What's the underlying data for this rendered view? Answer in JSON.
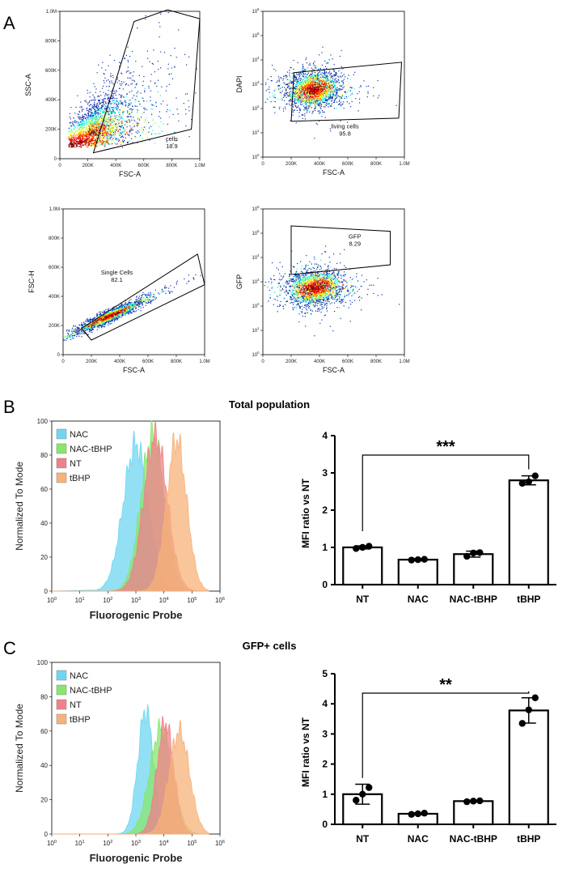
{
  "panel_labels": {
    "a": "A",
    "b": "B",
    "c": "C"
  },
  "chart_data": [
    {
      "type": "scatter",
      "panel": "A",
      "subplot": "top-left",
      "xlabel": "FSC-A",
      "ylabel": "SSC-A",
      "x_ticks": [
        "0",
        "200K",
        "400K",
        "600K",
        "800K",
        "1.0M"
      ],
      "y_ticks": [
        "0",
        "200K",
        "400K",
        "600K",
        "800K",
        "1.0M"
      ],
      "xlim": [
        0,
        1000000
      ],
      "ylim": [
        0,
        1000000
      ],
      "gate": {
        "name": "cells",
        "value": "18.9"
      },
      "gate_polygon": [
        [
          240000,
          40000
        ],
        [
          530000,
          930000
        ],
        [
          770000,
          1010000
        ],
        [
          1000000,
          950000
        ],
        [
          940000,
          200000
        ]
      ],
      "density_centers": [
        [
          60000,
          80000
        ],
        [
          130000,
          100000
        ],
        [
          200000,
          160000
        ]
      ],
      "colormap": "jet"
    },
    {
      "type": "scatter",
      "panel": "A",
      "subplot": "top-right",
      "xlabel": "FSC-A",
      "ylabel": "DAPI",
      "x_ticks": [
        "0",
        "200K",
        "400K",
        "600K",
        "800K",
        "1.0M"
      ],
      "y_ticks": [
        "10^0",
        "10^1",
        "10^2",
        "10^3",
        "10^4",
        "10^5",
        "10^6"
      ],
      "xlim": [
        0,
        1000000
      ],
      "ylim": [
        1,
        1000000
      ],
      "yscale": "log",
      "gate": {
        "name": "living cells",
        "value": "95.8"
      },
      "gate_polygon": [
        [
          220000,
          3000
        ],
        [
          980000,
          8000
        ],
        [
          960000,
          40
        ],
        [
          200000,
          30
        ]
      ],
      "density_centers": [
        [
          330000,
          500
        ],
        [
          380000,
          800
        ]
      ],
      "colormap": "jet"
    },
    {
      "type": "scatter",
      "panel": "A",
      "subplot": "bottom-left",
      "xlabel": "FSC-A",
      "ylabel": "FSC-H",
      "x_ticks": [
        "0",
        "200K",
        "400K",
        "600K",
        "800K",
        "1.0M"
      ],
      "y_ticks": [
        "0",
        "200K",
        "400K",
        "600K",
        "800K",
        "1.0M"
      ],
      "xlim": [
        0,
        1000000
      ],
      "ylim": [
        0,
        1000000
      ],
      "gate": {
        "name": "Single Cells",
        "value": "82.1"
      },
      "gate_polygon": [
        [
          130000,
          180000
        ],
        [
          950000,
          690000
        ],
        [
          1000000,
          480000
        ],
        [
          200000,
          100000
        ]
      ],
      "density_centers": [
        [
          280000,
          250000
        ],
        [
          360000,
          280000
        ]
      ],
      "colormap": "jet"
    },
    {
      "type": "scatter",
      "panel": "A",
      "subplot": "bottom-right",
      "xlabel": "FSC-A",
      "ylabel": "GFP",
      "x_ticks": [
        "0",
        "200K",
        "400K",
        "600K",
        "800K",
        "1.0M"
      ],
      "y_ticks": [
        "10^0",
        "10^1",
        "10^2",
        "10^3",
        "10^4",
        "10^5",
        "10^6"
      ],
      "xlim": [
        0,
        1000000
      ],
      "ylim": [
        1,
        1000000
      ],
      "yscale": "log",
      "gate": {
        "name": "GFP",
        "value": "8.29"
      },
      "gate_polygon": [
        [
          200000,
          200000
        ],
        [
          900000,
          120000
        ],
        [
          900000,
          5000
        ],
        [
          200000,
          2000
        ]
      ],
      "density_centers": [
        [
          330000,
          500
        ],
        [
          400000,
          700
        ]
      ],
      "colormap": "jet"
    },
    {
      "type": "area",
      "panel": "B",
      "title": "Total population",
      "xlabel": "Fluorogenic Probe",
      "ylabel": "Normalized To Mode",
      "xscale": "log",
      "xlim": [
        1,
        1000000
      ],
      "ylim": [
        0,
        100
      ],
      "x_ticks": [
        "10^0",
        "10^1",
        "10^2",
        "10^3",
        "10^4",
        "10^5",
        "10^6"
      ],
      "y_ticks": [
        "0",
        "20",
        "40",
        "60",
        "80",
        "100"
      ],
      "legend": "top-left",
      "series": [
        {
          "name": "NAC",
          "color": "#6fd6f2",
          "peak_log10": 3.0,
          "width": 0.45,
          "peak": 86
        },
        {
          "name": "NAC-tBHP",
          "color": "#88e66c",
          "peak_log10": 3.6,
          "width": 0.42,
          "peak": 92
        },
        {
          "name": "NT",
          "color": "#f0808a",
          "peak_log10": 3.7,
          "width": 0.42,
          "peak": 91
        },
        {
          "name": "tBHP",
          "color": "#f7b27a",
          "peak_log10": 4.45,
          "width": 0.36,
          "peak": 89
        }
      ]
    },
    {
      "type": "bar",
      "panel": "B",
      "categories": [
        "NT",
        "NAC",
        "NAC-tBHP",
        "tBHP"
      ],
      "values": [
        1.0,
        0.67,
        0.82,
        2.8
      ],
      "errors": [
        0.04,
        0.03,
        0.08,
        0.12
      ],
      "points": [
        [
          0.97,
          1.0,
          1.03
        ],
        [
          0.66,
          0.67,
          0.68
        ],
        [
          0.76,
          0.85,
          0.86
        ],
        [
          2.72,
          2.76,
          2.92
        ]
      ],
      "ylabel": "MFI ratio vs NT",
      "ylim": [
        0,
        4
      ],
      "y_ticks": [
        "0",
        "1",
        "2",
        "3",
        "4"
      ],
      "significance": {
        "from": "NT",
        "to": "tBHP",
        "label": "***"
      }
    },
    {
      "type": "area",
      "panel": "C",
      "title": "GFP+ cells",
      "xlabel": "Fluorogenic Probe",
      "ylabel": "Normalized To Mode",
      "xscale": "log",
      "xlim": [
        1,
        1000000
      ],
      "ylim": [
        0,
        100
      ],
      "x_ticks": [
        "10^0",
        "10^1",
        "10^2",
        "10^3",
        "10^4",
        "10^5",
        "10^6"
      ],
      "y_ticks": [
        "0",
        "20",
        "40",
        "60",
        "80",
        "100"
      ],
      "legend": "top-left",
      "series": [
        {
          "name": "NAC",
          "color": "#6fd6f2",
          "peak_log10": 3.35,
          "width": 0.28,
          "peak": 72
        },
        {
          "name": "NAC-tBHP",
          "color": "#88e66c",
          "peak_log10": 3.9,
          "width": 0.4,
          "peak": 62
        },
        {
          "name": "NT",
          "color": "#f0808a",
          "peak_log10": 4.05,
          "width": 0.3,
          "peak": 65
        },
        {
          "name": "tBHP",
          "color": "#f7b27a",
          "peak_log10": 4.55,
          "width": 0.36,
          "peak": 60
        }
      ]
    },
    {
      "type": "bar",
      "panel": "C",
      "categories": [
        "NT",
        "NAC",
        "NAC-tBHP",
        "tBHP"
      ],
      "values": [
        1.0,
        0.35,
        0.77,
        3.78
      ],
      "errors": [
        0.33,
        0.03,
        0.03,
        0.42
      ],
      "points": [
        [
          0.8,
          1.0,
          1.22
        ],
        [
          0.33,
          0.35,
          0.37
        ],
        [
          0.75,
          0.77,
          0.78
        ],
        [
          3.35,
          3.8,
          4.2
        ]
      ],
      "ylabel": "MFI ratio vs NT",
      "ylim": [
        0,
        5
      ],
      "y_ticks": [
        "0",
        "1",
        "2",
        "3",
        "4",
        "5"
      ],
      "significance": {
        "from": "NT",
        "to": "tBHP",
        "label": "**"
      }
    }
  ]
}
